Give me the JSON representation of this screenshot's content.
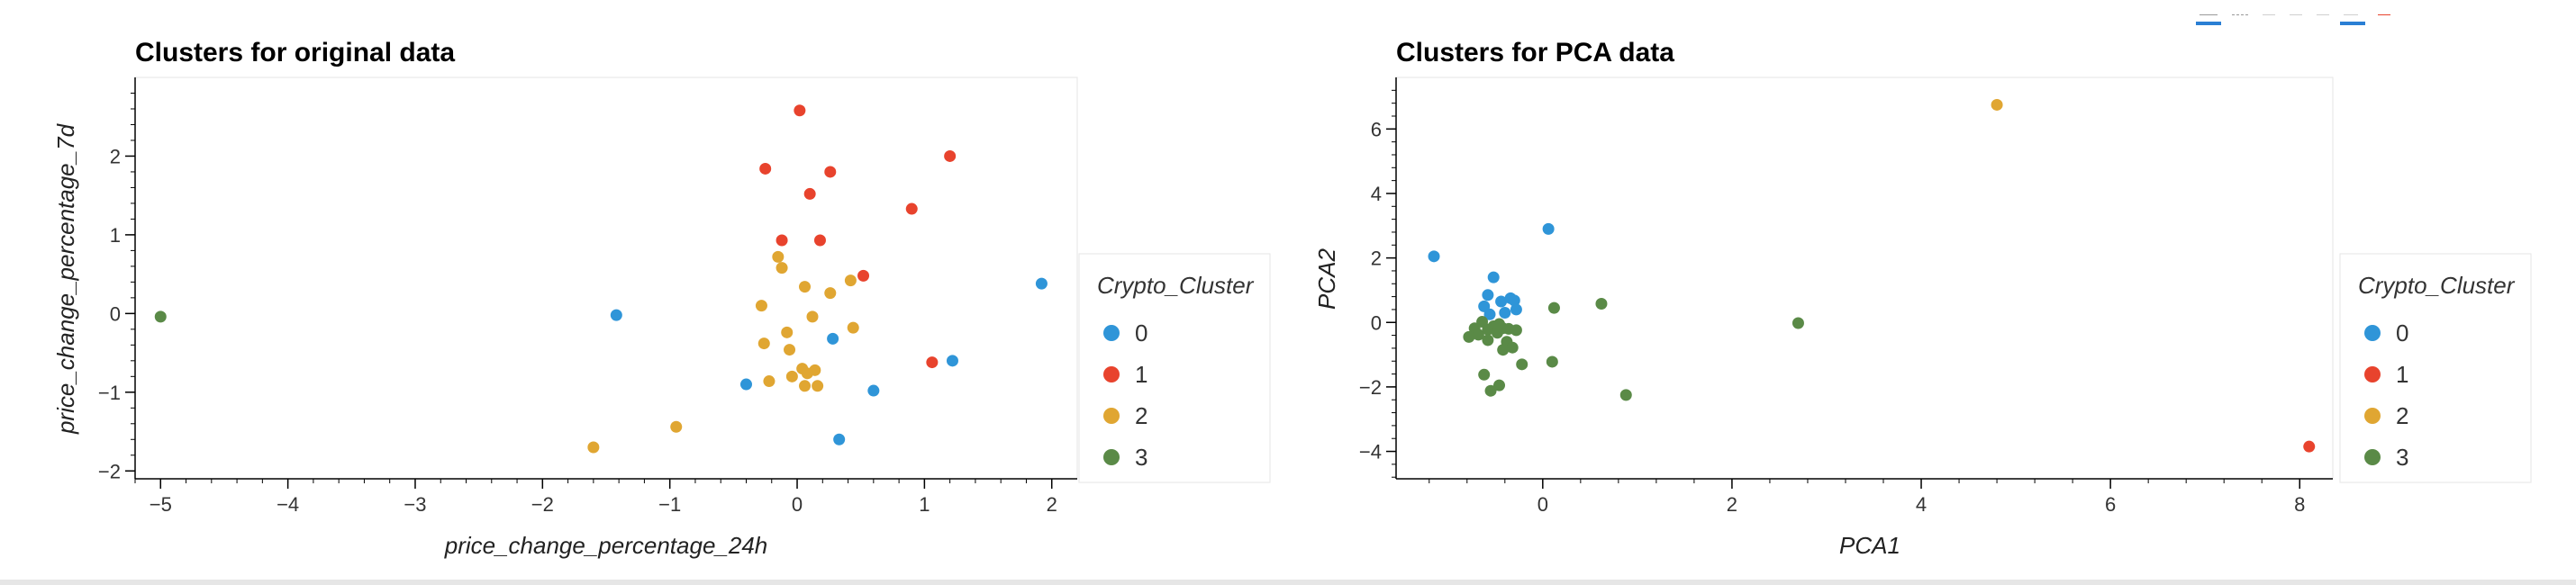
{
  "toolbar": {
    "icons": [
      "pan-icon",
      "box-zoom-icon",
      "wheel-zoom-icon",
      "save-icon",
      "reset-icon",
      "hover-icon",
      "bokeh-logo-icon"
    ],
    "accent": "#2a7fd4"
  },
  "colors": {
    "0": "#2f95d8",
    "1": "#e8432d",
    "2": "#e0a632",
    "3": "#5a8a47"
  },
  "chart_data": [
    {
      "type": "scatter",
      "title": "Clusters for original data",
      "xlabel": "price_change_percentage_24h",
      "ylabel": "price_change_percentage_7d",
      "xlim": [
        -5.2,
        2.2
      ],
      "ylim": [
        -2.1,
        3.0
      ],
      "xticks": [
        -5,
        -4,
        -3,
        -2,
        -1,
        0,
        1,
        2
      ],
      "yticks": [
        -2,
        -1,
        0,
        1,
        2
      ],
      "xtick_labels": [
        "−5",
        "−4",
        "−3",
        "−2",
        "−1",
        "0",
        "1",
        "2"
      ],
      "ytick_labels": [
        "−2",
        "−1",
        "0",
        "1",
        "2"
      ],
      "grid": false,
      "legend": {
        "title": "Crypto_Cluster",
        "placement": "right",
        "entries": [
          "0",
          "1",
          "2",
          "3"
        ]
      },
      "series": [
        {
          "name": "0",
          "points": [
            [
              -1.42,
              -0.02
            ],
            [
              -0.4,
              -0.9
            ],
            [
              0.28,
              -0.32
            ],
            [
              0.33,
              -1.6
            ],
            [
              0.6,
              -0.98
            ],
            [
              1.22,
              -0.6
            ],
            [
              1.92,
              0.38
            ]
          ]
        },
        {
          "name": "1",
          "points": [
            [
              0.02,
              2.58
            ],
            [
              -0.25,
              1.84
            ],
            [
              0.26,
              1.8
            ],
            [
              0.1,
              1.52
            ],
            [
              1.2,
              2.0
            ],
            [
              0.9,
              1.33
            ],
            [
              -0.12,
              0.93
            ],
            [
              0.18,
              0.93
            ],
            [
              0.52,
              0.48
            ],
            [
              1.06,
              -0.62
            ]
          ]
        },
        {
          "name": "2",
          "points": [
            [
              -0.15,
              0.72
            ],
            [
              -0.12,
              0.58
            ],
            [
              -0.28,
              0.1
            ],
            [
              0.06,
              0.34
            ],
            [
              0.42,
              0.42
            ],
            [
              0.26,
              0.26
            ],
            [
              0.12,
              -0.04
            ],
            [
              -0.08,
              -0.24
            ],
            [
              0.44,
              -0.18
            ],
            [
              -0.26,
              -0.38
            ],
            [
              -0.06,
              -0.46
            ],
            [
              0.04,
              -0.7
            ],
            [
              0.14,
              -0.72
            ],
            [
              0.08,
              -0.76
            ],
            [
              -0.04,
              -0.8
            ],
            [
              -0.22,
              -0.86
            ],
            [
              0.06,
              -0.92
            ],
            [
              0.16,
              -0.92
            ],
            [
              -0.95,
              -1.44
            ],
            [
              -1.6,
              -1.7
            ]
          ]
        },
        {
          "name": "3",
          "points": [
            [
              -5.0,
              -0.04
            ]
          ]
        }
      ]
    },
    {
      "type": "scatter",
      "title": "Clusters for PCA data",
      "xlabel": "PCA1",
      "ylabel": "PCA2",
      "xlim": [
        -1.55,
        8.35
      ],
      "ylim": [
        -4.85,
        7.6
      ],
      "xticks": [
        0,
        2,
        4,
        6,
        8
      ],
      "yticks": [
        -4,
        -2,
        0,
        2,
        4,
        6
      ],
      "xtick_labels": [
        "0",
        "2",
        "4",
        "6",
        "8"
      ],
      "ytick_labels": [
        "−4",
        "−2",
        "0",
        "2",
        "4",
        "6"
      ],
      "grid": false,
      "legend": {
        "title": "Crypto_Cluster",
        "placement": "right",
        "entries": [
          "0",
          "1",
          "2",
          "3"
        ]
      },
      "series": [
        {
          "name": "0",
          "points": [
            [
              -1.15,
              2.05
            ],
            [
              0.06,
              2.9
            ],
            [
              -0.52,
              1.4
            ],
            [
              -0.58,
              0.85
            ],
            [
              -0.44,
              0.65
            ],
            [
              -0.34,
              0.75
            ],
            [
              -0.3,
              0.68
            ],
            [
              -0.62,
              0.5
            ],
            [
              -0.4,
              0.3
            ],
            [
              -0.56,
              0.25
            ],
            [
              -0.28,
              0.4
            ]
          ]
        },
        {
          "name": "1",
          "points": [
            [
              8.1,
              -3.85
            ]
          ]
        },
        {
          "name": "2",
          "points": [
            [
              4.8,
              6.75
            ]
          ]
        },
        {
          "name": "3",
          "points": [
            [
              -0.72,
              -0.18
            ],
            [
              -0.78,
              -0.45
            ],
            [
              -0.68,
              -0.38
            ],
            [
              -0.58,
              -0.22
            ],
            [
              -0.52,
              -0.12
            ],
            [
              -0.48,
              -0.32
            ],
            [
              -0.42,
              -0.18
            ],
            [
              -0.38,
              -0.6
            ],
            [
              -0.32,
              -0.78
            ],
            [
              -0.58,
              -0.55
            ],
            [
              -0.42,
              -0.85
            ],
            [
              -0.36,
              -0.2
            ],
            [
              -0.28,
              -0.24
            ],
            [
              -0.22,
              -1.3
            ],
            [
              -0.62,
              -1.62
            ],
            [
              -0.55,
              -2.12
            ],
            [
              -0.46,
              -1.95
            ],
            [
              0.1,
              -1.22
            ],
            [
              0.12,
              0.45
            ],
            [
              0.62,
              0.58
            ],
            [
              0.88,
              -2.25
            ],
            [
              2.7,
              -0.02
            ],
            [
              -0.64,
              0.02
            ],
            [
              -0.46,
              -0.05
            ]
          ]
        }
      ]
    }
  ]
}
